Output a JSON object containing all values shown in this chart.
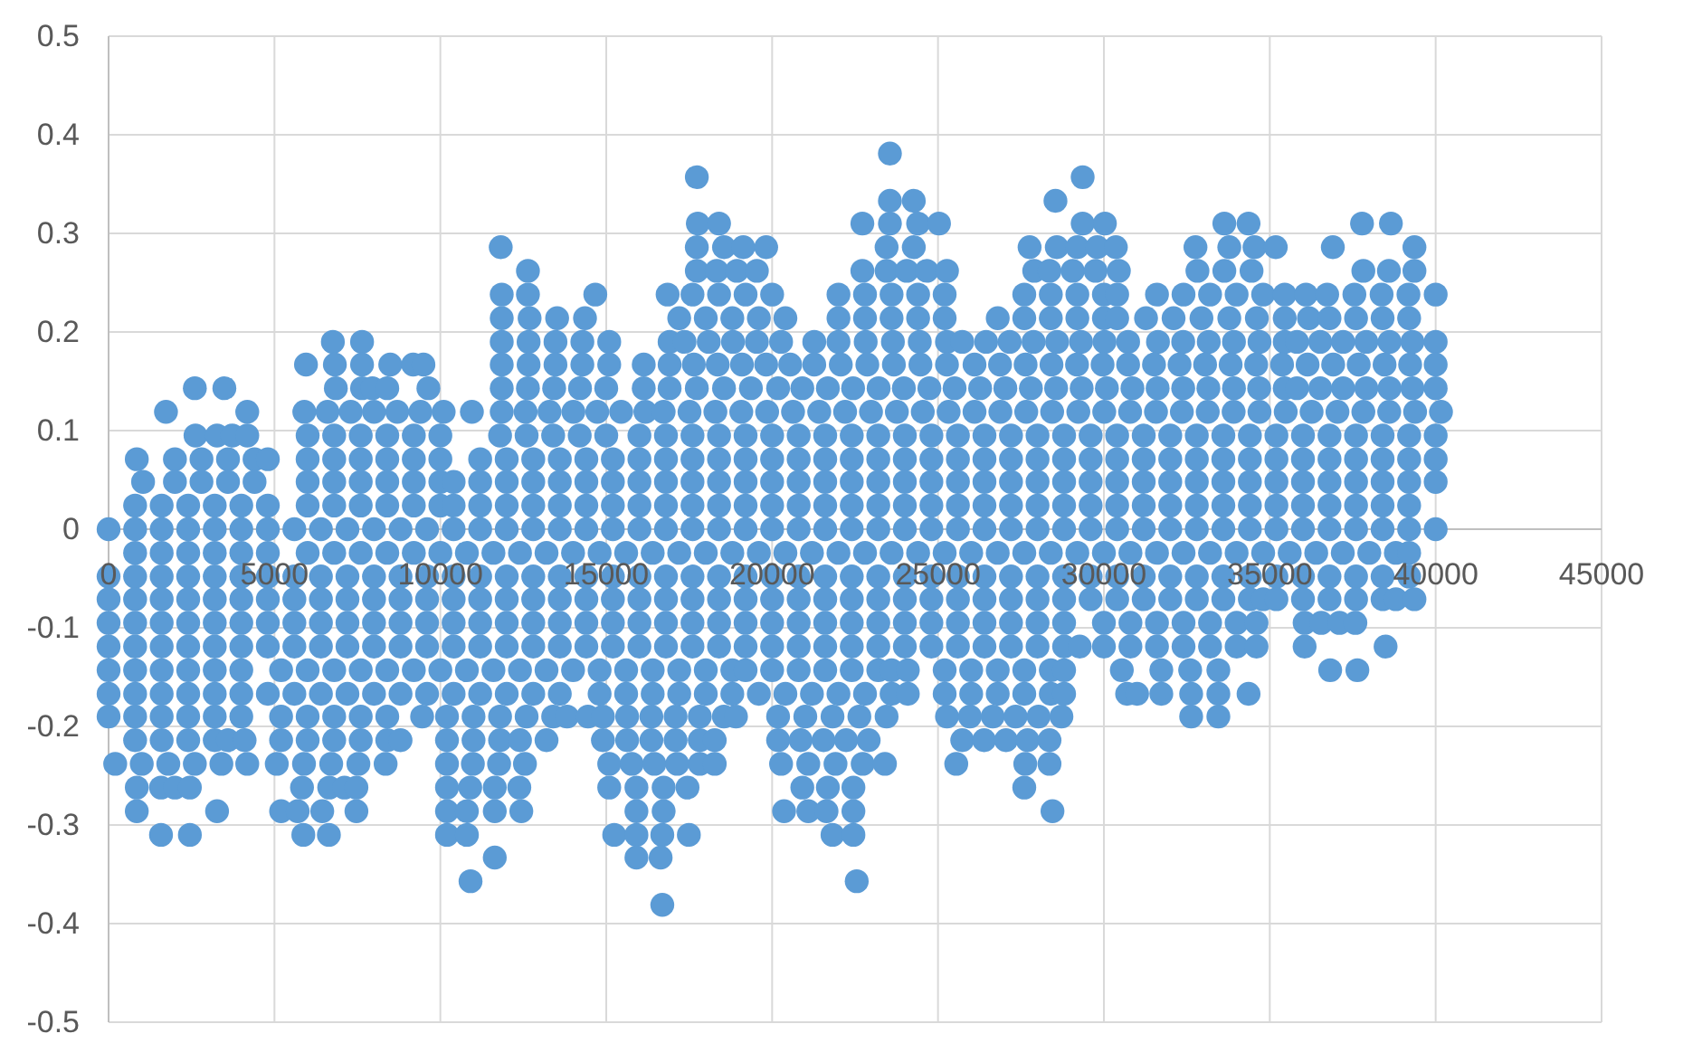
{
  "chart_data": {
    "type": "scatter",
    "xlim": [
      0,
      45000
    ],
    "ylim": [
      -0.5,
      0.5
    ],
    "xticks": [
      0,
      5000,
      10000,
      15000,
      20000,
      25000,
      30000,
      35000,
      40000,
      45000
    ],
    "yticks": [
      -0.5,
      -0.4,
      -0.3,
      -0.2,
      -0.1,
      0,
      0.1,
      0.2,
      0.3,
      0.4,
      0.5
    ],
    "grid": true,
    "marker": "circle",
    "color": "#5b9bd5",
    "series": [
      {
        "x": [
          23550
        ],
        "values": [
          0.381
        ]
      },
      {
        "x": [
          17730,
          29360
        ],
        "values": [
          0.357,
          0.357
        ]
      },
      {
        "x": [
          23550,
          24270,
          28540
        ],
        "values": [
          0.333,
          0.333,
          0.333
        ]
      },
      {
        "x": [
          17760,
          18400,
          22720,
          23550,
          24400,
          25030,
          29360,
          30030,
          33630,
          34360,
          37780,
          38650
        ],
        "values": [
          0.31,
          0.31,
          0.31,
          0.31,
          0.31,
          0.31,
          0.31,
          0.31,
          0.31,
          0.31,
          0.31,
          0.31
        ]
      },
      {
        "x": [
          11820,
          17730,
          18550,
          19130,
          19820,
          23450,
          24270,
          27760,
          28580,
          29200,
          29800,
          30360,
          32760,
          33780,
          34540,
          35180,
          36900,
          39360
        ],
        "values": [
          0.286,
          0.286,
          0.286,
          0.286,
          0.286,
          0.286,
          0.286,
          0.286,
          0.286,
          0.286,
          0.286,
          0.286,
          0.286,
          0.286,
          0.286,
          0.286,
          0.286,
          0.286
        ]
      },
      {
        "x": [
          12640,
          17730,
          18330,
          18940,
          19540,
          22720,
          23450,
          24060,
          24660,
          25270,
          27900,
          28360,
          29060,
          29750,
          30450,
          32820,
          33630,
          34450,
          37820,
          38590,
          39360
        ],
        "values": [
          0.262,
          0.262,
          0.262,
          0.262,
          0.262,
          0.262,
          0.262,
          0.262,
          0.262,
          0.262,
          0.262,
          0.262,
          0.262,
          0.262,
          0.262,
          0.262,
          0.262,
          0.262,
          0.262,
          0.262,
          0.262
        ]
      },
      {
        "x": [
          11850,
          12640,
          14670,
          16850,
          17600,
          18400,
          19200,
          20000,
          22000,
          22800,
          23600,
          24400,
          25200,
          27600,
          28400,
          29200,
          30000,
          30400,
          31600,
          32400,
          33200,
          34000,
          34800,
          35450,
          36090,
          36730,
          37550,
          38370,
          39180,
          40000
        ],
        "values": [
          0.238,
          0.238,
          0.238,
          0.238,
          0.238,
          0.238,
          0.238,
          0.238,
          0.238,
          0.238,
          0.238,
          0.238,
          0.238,
          0.238,
          0.238,
          0.238,
          0.238,
          0.238,
          0.238,
          0.238,
          0.238,
          0.238,
          0.238,
          0.238,
          0.238,
          0.238,
          0.238,
          0.238,
          0.238,
          0.238
        ]
      },
      {
        "x": [
          11850,
          12690,
          13520,
          14360,
          17200,
          18000,
          18800,
          19600,
          20400,
          22000,
          22800,
          23600,
          24400,
          25200,
          26800,
          27600,
          28400,
          29200,
          30000,
          30400,
          31270,
          32100,
          32940,
          33780,
          34610,
          35450,
          36180,
          36800,
          37600,
          38400,
          39200
        ],
        "values": [
          0.214,
          0.214,
          0.214,
          0.214,
          0.214,
          0.214,
          0.214,
          0.214,
          0.214,
          0.214,
          0.214,
          0.214,
          0.214,
          0.214,
          0.214,
          0.214,
          0.214,
          0.214,
          0.214,
          0.214,
          0.214,
          0.214,
          0.214,
          0.214,
          0.214,
          0.214,
          0.214,
          0.214,
          0.214,
          0.214,
          0.214
        ]
      },
      {
        "x": [
          6760,
          7640,
          11850,
          12660,
          13470,
          14280,
          15090,
          16910,
          17360,
          18090,
          18820,
          19540,
          20270,
          21270,
          22000,
          22820,
          23640,
          24450,
          25270,
          25730,
          26450,
          27160,
          27880,
          28590,
          29310,
          30020,
          30730,
          31630,
          32390,
          33160,
          33920,
          34690,
          35450,
          35820,
          36520,
          37210,
          37910,
          38610,
          39300,
          40000
        ],
        "values": [
          0.19,
          0.19,
          0.19,
          0.19,
          0.19,
          0.19,
          0.19,
          0.19,
          0.19,
          0.19,
          0.19,
          0.19,
          0.19,
          0.19,
          0.19,
          0.19,
          0.19,
          0.19,
          0.19,
          0.19,
          0.19,
          0.19,
          0.19,
          0.19,
          0.19,
          0.19,
          0.19,
          0.19,
          0.19,
          0.19,
          0.19,
          0.19,
          0.19,
          0.19,
          0.19,
          0.19,
          0.19,
          0.19,
          0.19,
          0.19
        ]
      },
      {
        "x": [
          5950,
          6820,
          7640,
          8490,
          9180,
          9490,
          11850,
          12660,
          13470,
          14280,
          15090,
          16130,
          16910,
          17640,
          18360,
          19090,
          19820,
          20545,
          21270,
          22070,
          22870,
          23670,
          24470,
          25270,
          26100,
          26870,
          27640,
          28420,
          29190,
          29960,
          30730,
          31510,
          32280,
          33050,
          33820,
          34590,
          35370,
          36140,
          36910,
          37680,
          38460,
          39230,
          40000
        ],
        "values": [
          0.167,
          0.167,
          0.167,
          0.167,
          0.167,
          0.167,
          0.167,
          0.167,
          0.167,
          0.167,
          0.167,
          0.167,
          0.167,
          0.167,
          0.167,
          0.167,
          0.167,
          0.167,
          0.167,
          0.167,
          0.167,
          0.167,
          0.167,
          0.167,
          0.167,
          0.167,
          0.167,
          0.167,
          0.167,
          0.167,
          0.167,
          0.167,
          0.167,
          0.167,
          0.167,
          0.167,
          0.167,
          0.167,
          0.167,
          0.167,
          0.167,
          0.167,
          0.167
        ]
      },
      {
        "x": [
          2600,
          3490,
          6850,
          7640,
          7950,
          8400,
          9640,
          11850,
          12640,
          13430,
          14210,
          15000,
          16130,
          16910,
          17730,
          18550,
          19360,
          20180,
          20910,
          21680,
          22440,
          23210,
          23970,
          24740,
          25500,
          26270,
          27030,
          27800,
          28560,
          29330,
          30090,
          30860,
          31620,
          32390,
          33150,
          33920,
          34680,
          35450,
          35820,
          36520,
          37210,
          37910,
          38610,
          39300,
          40000
        ],
        "values": [
          0.143,
          0.143,
          0.143,
          0.143,
          0.143,
          0.143,
          0.143,
          0.143,
          0.143,
          0.143,
          0.143,
          0.143,
          0.143,
          0.143,
          0.143,
          0.143,
          0.143,
          0.143,
          0.143,
          0.143,
          0.143,
          0.143,
          0.143,
          0.143,
          0.143,
          0.143,
          0.143,
          0.143,
          0.143,
          0.143,
          0.143,
          0.143,
          0.143,
          0.143,
          0.143,
          0.143,
          0.143,
          0.143,
          0.143,
          0.143,
          0.143,
          0.143,
          0.143,
          0.143,
          0.143
        ]
      },
      {
        "x": [
          1730,
          4180,
          5900,
          6600,
          7300,
          8000,
          8700,
          9400,
          10100,
          10950,
          11850,
          12570,
          13290,
          14010,
          14730,
          15450,
          16180,
          16730,
          17510,
          18290,
          19070,
          19850,
          20630,
          21420,
          22200,
          22980,
          23760,
          24540,
          25320,
          26100,
          26880,
          27660,
          28440,
          29230,
          30010,
          30790,
          31570,
          32350,
          33130,
          33910,
          34690,
          35480,
          36260,
          37040,
          37820,
          38600,
          39380,
          40160
        ],
        "values": [
          0.119,
          0.119,
          0.119,
          0.119,
          0.119,
          0.119,
          0.119,
          0.119,
          0.119,
          0.119,
          0.119,
          0.119,
          0.119,
          0.119,
          0.119,
          0.119,
          0.119,
          0.119,
          0.119,
          0.119,
          0.119,
          0.119,
          0.119,
          0.119,
          0.119,
          0.119,
          0.119,
          0.119,
          0.119,
          0.119,
          0.119,
          0.119,
          0.119,
          0.119,
          0.119,
          0.119,
          0.119,
          0.119,
          0.119,
          0.119,
          0.119,
          0.119,
          0.119,
          0.119,
          0.119,
          0.119,
          0.119,
          0.119
        ]
      },
      {
        "x": [
          2620,
          3270,
          3730,
          4180,
          6000,
          6800,
          7600,
          8400,
          9200,
          10000,
          11800,
          12600,
          13400,
          14200,
          15000,
          16000,
          16800,
          17600,
          18400,
          19200,
          20000,
          20800,
          21600,
          22400,
          23200,
          24000,
          24800,
          25600,
          26400,
          27200,
          28000,
          28800,
          29600,
          30400,
          31200,
          32000,
          32800,
          33600,
          34400,
          35200,
          36000,
          36800,
          37600,
          38400,
          39200,
          40000
        ],
        "values": [
          0.095,
          0.095,
          0.095,
          0.095,
          0.095,
          0.095,
          0.095,
          0.095,
          0.095,
          0.095,
          0.095,
          0.095,
          0.095,
          0.095,
          0.095,
          0.095,
          0.095,
          0.095,
          0.095,
          0.095,
          0.095,
          0.095,
          0.095,
          0.095,
          0.095,
          0.095,
          0.095,
          0.095,
          0.095,
          0.095,
          0.095,
          0.095,
          0.095,
          0.095,
          0.095,
          0.095,
          0.095,
          0.095,
          0.095,
          0.095,
          0.095,
          0.095,
          0.095,
          0.095,
          0.095,
          0.095
        ]
      },
      {
        "x": [
          850,
          2000,
          2800,
          3600,
          4400,
          4800,
          6000,
          6800,
          7600,
          8400,
          9200,
          10000,
          11200,
          12000,
          12800,
          13600,
          14400,
          15200,
          16000,
          16800,
          17600,
          18400,
          19200,
          20000,
          20800,
          21600,
          22400,
          23200,
          24000,
          24800,
          25600,
          26400,
          27200,
          28000,
          28800,
          29600,
          30400,
          31200,
          32000,
          32800,
          33600,
          34400,
          35200,
          36000,
          36800,
          37600,
          38400,
          39200,
          40000
        ],
        "values": [
          0.071,
          0.071,
          0.071,
          0.071,
          0.071,
          0.071,
          0.071,
          0.071,
          0.071,
          0.071,
          0.071,
          0.071,
          0.071,
          0.071,
          0.071,
          0.071,
          0.071,
          0.071,
          0.071,
          0.071,
          0.071,
          0.071,
          0.071,
          0.071,
          0.071,
          0.071,
          0.071,
          0.071,
          0.071,
          0.071,
          0.071,
          0.071,
          0.071,
          0.071,
          0.071,
          0.071,
          0.071,
          0.071,
          0.071,
          0.071,
          0.071,
          0.071,
          0.071,
          0.071,
          0.071,
          0.071,
          0.071,
          0.071,
          0.071
        ]
      },
      {
        "x": [
          1040,
          2000,
          2800,
          3600,
          4400,
          6000,
          6800,
          7600,
          8400,
          9200,
          10000,
          10400,
          11200,
          12000,
          12800,
          13600,
          14400,
          15200,
          16000,
          16800,
          17600,
          18400,
          19200,
          20000,
          20800,
          21600,
          22400,
          23200,
          24000,
          24800,
          25600,
          26400,
          27200,
          28000,
          28800,
          29600,
          30400,
          31200,
          32000,
          32800,
          33600,
          34400,
          35200,
          36000,
          36800,
          37600,
          38400,
          39200,
          40000
        ],
        "values": [
          0.048,
          0.048,
          0.048,
          0.048,
          0.048,
          0.048,
          0.048,
          0.048,
          0.048,
          0.048,
          0.048,
          0.048,
          0.048,
          0.048,
          0.048,
          0.048,
          0.048,
          0.048,
          0.048,
          0.048,
          0.048,
          0.048,
          0.048,
          0.048,
          0.048,
          0.048,
          0.048,
          0.048,
          0.048,
          0.048,
          0.048,
          0.048,
          0.048,
          0.048,
          0.048,
          0.048,
          0.048,
          0.048,
          0.048,
          0.048,
          0.048,
          0.048,
          0.048,
          0.048,
          0.048,
          0.048,
          0.048,
          0.048,
          0.048
        ]
      },
      {
        "x": [
          800,
          1600,
          2400,
          3200,
          4000,
          4800,
          6000,
          6800,
          7600,
          8400,
          9200,
          10000,
          10400,
          11200,
          12000,
          12800,
          13600,
          14400,
          15200,
          16000,
          16800,
          17600,
          18400,
          19200,
          20000,
          20800,
          21600,
          22400,
          23200,
          24000,
          24800,
          25600,
          26400,
          27200,
          28000,
          28800,
          29600,
          30400,
          31200,
          32000,
          32800,
          33600,
          34400,
          35200,
          36000,
          36800,
          37600,
          38400,
          39200
        ],
        "values": [
          0.024,
          0.024,
          0.024,
          0.024,
          0.024,
          0.024,
          0.024,
          0.024,
          0.024,
          0.024,
          0.024,
          0.024,
          0.024,
          0.024,
          0.024,
          0.024,
          0.024,
          0.024,
          0.024,
          0.024,
          0.024,
          0.024,
          0.024,
          0.024,
          0.024,
          0.024,
          0.024,
          0.024,
          0.024,
          0.024,
          0.024,
          0.024,
          0.024,
          0.024,
          0.024,
          0.024,
          0.024,
          0.024,
          0.024,
          0.024,
          0.024,
          0.024,
          0.024,
          0.024,
          0.024,
          0.024,
          0.024,
          0.024,
          0.024
        ]
      },
      {
        "x": [
          0,
          800,
          1600,
          2400,
          3200,
          4000,
          4800,
          5600,
          6400,
          7200,
          8000,
          8800,
          9600,
          10400,
          11200,
          12000,
          12800,
          13600,
          14400,
          15200,
          16000,
          16800,
          17600,
          18400,
          19200,
          20000,
          20800,
          21600,
          22400,
          23200,
          24000,
          24800,
          25600,
          26400,
          27200,
          28000,
          28800,
          29600,
          30400,
          31200,
          32000,
          32800,
          33600,
          34400,
          35200,
          36000,
          36800,
          37600,
          38400,
          39200,
          40000
        ],
        "values": [
          0,
          0,
          0,
          0,
          0,
          0,
          0,
          0,
          0,
          0,
          0,
          0,
          0,
          0,
          0,
          0,
          0,
          0,
          0,
          0,
          0,
          0,
          0,
          0,
          0,
          0,
          0,
          0,
          0,
          0,
          0,
          0,
          0,
          0,
          0,
          0,
          0,
          0,
          0,
          0,
          0,
          0,
          0,
          0,
          0,
          0,
          0,
          0,
          0,
          0,
          0
        ]
      },
      {
        "x": [
          800,
          1600,
          2400,
          3200,
          4000,
          4800,
          6000,
          6800,
          7600,
          8400,
          9200,
          10000,
          10800,
          11600,
          12400,
          13200,
          14000,
          14800,
          15600,
          16400,
          17200,
          18000,
          18800,
          19600,
          20400,
          21200,
          22000,
          22800,
          23600,
          24400,
          25200,
          26000,
          26800,
          27600,
          28400,
          29200,
          30000,
          30800,
          31600,
          32400,
          33200,
          34000,
          34800,
          35600,
          36400,
          37200,
          38000,
          38800,
          39200
        ],
        "values": [
          -0.024,
          -0.024,
          -0.024,
          -0.024,
          -0.024,
          -0.024,
          -0.024,
          -0.024,
          -0.024,
          -0.024,
          -0.024,
          -0.024,
          -0.024,
          -0.024,
          -0.024,
          -0.024,
          -0.024,
          -0.024,
          -0.024,
          -0.024,
          -0.024,
          -0.024,
          -0.024,
          -0.024,
          -0.024,
          -0.024,
          -0.024,
          -0.024,
          -0.024,
          -0.024,
          -0.024,
          -0.024,
          -0.024,
          -0.024,
          -0.024,
          -0.024,
          -0.024,
          -0.024,
          -0.024,
          -0.024,
          -0.024,
          -0.024,
          -0.024,
          -0.024,
          -0.024,
          -0.024,
          -0.024,
          -0.024,
          -0.024
        ]
      },
      {
        "x": [
          0,
          800,
          1600,
          2400,
          3200,
          4000,
          4800,
          5600,
          6400,
          7200,
          8000,
          8800,
          9600,
          10400,
          11200,
          12000,
          12800,
          13600,
          14400,
          15200,
          16000,
          16800,
          17600,
          18400,
          19200,
          20000,
          20800,
          21600,
          22400,
          23200,
          24000,
          24800,
          25600,
          26400,
          27200,
          28000,
          28800,
          29600,
          30400,
          31200,
          32000,
          32800,
          33600,
          34400,
          35200,
          36000,
          36800,
          37600,
          38400,
          39200
        ],
        "values": [
          -0.048,
          -0.048,
          -0.048,
          -0.048,
          -0.048,
          -0.048,
          -0.048,
          -0.048,
          -0.048,
          -0.048,
          -0.048,
          -0.048,
          -0.048,
          -0.048,
          -0.048,
          -0.048,
          -0.048,
          -0.048,
          -0.048,
          -0.048,
          -0.048,
          -0.048,
          -0.048,
          -0.048,
          -0.048,
          -0.048,
          -0.048,
          -0.048,
          -0.048,
          -0.048,
          -0.048,
          -0.048,
          -0.048,
          -0.048,
          -0.048,
          -0.048,
          -0.048,
          -0.048,
          -0.048,
          -0.048,
          -0.048,
          -0.048,
          -0.048,
          -0.048,
          -0.048,
          -0.048,
          -0.048,
          -0.048,
          -0.048,
          -0.048
        ]
      },
      {
        "x": [
          0,
          800,
          1600,
          2400,
          3200,
          4000,
          4800,
          5600,
          6400,
          7200,
          8000,
          8800,
          9600,
          10400,
          11200,
          12000,
          12800,
          13600,
          14400,
          15200,
          16000,
          16800,
          17600,
          18400,
          19200,
          20000,
          20800,
          21600,
          22400,
          23200,
          24000,
          24800,
          25600,
          26400,
          27200,
          28000,
          28800,
          29600,
          30400,
          31200,
          32000,
          32800,
          33600,
          34400,
          34800,
          35200,
          36000,
          36800,
          37600,
          38400,
          38800,
          39360
        ],
        "values": [
          -0.071,
          -0.071,
          -0.071,
          -0.071,
          -0.071,
          -0.071,
          -0.071,
          -0.071,
          -0.071,
          -0.071,
          -0.071,
          -0.071,
          -0.071,
          -0.071,
          -0.071,
          -0.071,
          -0.071,
          -0.071,
          -0.071,
          -0.071,
          -0.071,
          -0.071,
          -0.071,
          -0.071,
          -0.071,
          -0.071,
          -0.071,
          -0.071,
          -0.071,
          -0.071,
          -0.071,
          -0.071,
          -0.071,
          -0.071,
          -0.071,
          -0.071,
          -0.071,
          -0.071,
          -0.071,
          -0.071,
          -0.071,
          -0.071,
          -0.071,
          -0.071,
          -0.071,
          -0.071,
          -0.071,
          -0.071,
          -0.071,
          -0.071,
          -0.071,
          -0.071
        ]
      },
      {
        "x": [
          0,
          800,
          1600,
          2400,
          3200,
          4000,
          4800,
          5600,
          6400,
          7200,
          8000,
          8800,
          9600,
          10400,
          11200,
          12000,
          12800,
          13600,
          14400,
          15200,
          16000,
          16800,
          17600,
          18400,
          19200,
          20000,
          20800,
          21600,
          22400,
          23200,
          24000,
          24800,
          25600,
          26400,
          27200,
          28000,
          28800,
          30000,
          30800,
          31600,
          32400,
          33200,
          34000,
          34600,
          36050,
          36550,
          37100,
          37580
        ],
        "values": [
          -0.095,
          -0.095,
          -0.095,
          -0.095,
          -0.095,
          -0.095,
          -0.095,
          -0.095,
          -0.095,
          -0.095,
          -0.095,
          -0.095,
          -0.095,
          -0.095,
          -0.095,
          -0.095,
          -0.095,
          -0.095,
          -0.095,
          -0.095,
          -0.095,
          -0.095,
          -0.095,
          -0.095,
          -0.095,
          -0.095,
          -0.095,
          -0.095,
          -0.095,
          -0.095,
          -0.095,
          -0.095,
          -0.095,
          -0.095,
          -0.095,
          -0.095,
          -0.095,
          -0.095,
          -0.095,
          -0.095,
          -0.095,
          -0.095,
          -0.095,
          -0.095,
          -0.095,
          -0.095,
          -0.095,
          -0.095
        ]
      },
      {
        "x": [
          0,
          800,
          1600,
          2400,
          3200,
          4000,
          4800,
          5600,
          6400,
          7200,
          8000,
          8800,
          9600,
          10400,
          11200,
          12000,
          12800,
          13600,
          14400,
          15200,
          16000,
          16800,
          17600,
          18400,
          19200,
          20000,
          20800,
          21600,
          22400,
          23200,
          24000,
          24800,
          25600,
          26400,
          27200,
          28000,
          28800,
          29270,
          30000,
          30800,
          31600,
          32400,
          33200,
          34000,
          34600,
          36050,
          38490
        ],
        "values": [
          -0.119,
          -0.119,
          -0.119,
          -0.119,
          -0.119,
          -0.119,
          -0.119,
          -0.119,
          -0.119,
          -0.119,
          -0.119,
          -0.119,
          -0.119,
          -0.119,
          -0.119,
          -0.119,
          -0.119,
          -0.119,
          -0.119,
          -0.119,
          -0.119,
          -0.119,
          -0.119,
          -0.119,
          -0.119,
          -0.119,
          -0.119,
          -0.119,
          -0.119,
          -0.119,
          -0.119,
          -0.119,
          -0.119,
          -0.119,
          -0.119,
          -0.119,
          -0.119,
          -0.119,
          -0.119,
          -0.119,
          -0.119,
          -0.119,
          -0.119,
          -0.119,
          -0.119,
          -0.119,
          -0.119
        ]
      },
      {
        "x": [
          0,
          800,
          1600,
          2400,
          3200,
          4000,
          5200,
          6000,
          6800,
          7600,
          8400,
          9200,
          10000,
          10800,
          11600,
          12400,
          13200,
          14000,
          14800,
          15600,
          16400,
          17200,
          18000,
          18800,
          19200,
          20000,
          20800,
          21600,
          22400,
          23200,
          23600,
          24090,
          25200,
          26000,
          26800,
          27600,
          28400,
          28800,
          30540,
          31730,
          32600,
          33450,
          36820,
          37640
        ],
        "values": [
          -0.143,
          -0.143,
          -0.143,
          -0.143,
          -0.143,
          -0.143,
          -0.143,
          -0.143,
          -0.143,
          -0.143,
          -0.143,
          -0.143,
          -0.143,
          -0.143,
          -0.143,
          -0.143,
          -0.143,
          -0.143,
          -0.143,
          -0.143,
          -0.143,
          -0.143,
          -0.143,
          -0.143,
          -0.143,
          -0.143,
          -0.143,
          -0.143,
          -0.143,
          -0.143,
          -0.143,
          -0.143,
          -0.143,
          -0.143,
          -0.143,
          -0.143,
          -0.143,
          -0.143,
          -0.143,
          -0.143,
          -0.143,
          -0.143,
          -0.143,
          -0.143
        ]
      },
      {
        "x": [
          0,
          800,
          1600,
          2400,
          3200,
          4000,
          4800,
          5600,
          6400,
          7200,
          8000,
          8800,
          9600,
          10400,
          11200,
          12000,
          12800,
          13600,
          14800,
          15600,
          16400,
          17200,
          18000,
          18800,
          19600,
          20400,
          21200,
          22000,
          22800,
          23600,
          24090,
          25200,
          26000,
          26800,
          27600,
          28400,
          28800,
          30700,
          31000,
          31730,
          32630,
          33450,
          34360
        ],
        "values": [
          -0.167,
          -0.167,
          -0.167,
          -0.167,
          -0.167,
          -0.167,
          -0.167,
          -0.167,
          -0.167,
          -0.167,
          -0.167,
          -0.167,
          -0.167,
          -0.167,
          -0.167,
          -0.167,
          -0.167,
          -0.167,
          -0.167,
          -0.167,
          -0.167,
          -0.167,
          -0.167,
          -0.167,
          -0.167,
          -0.167,
          -0.167,
          -0.167,
          -0.167,
          -0.167,
          -0.167,
          -0.167,
          -0.167,
          -0.167,
          -0.167,
          -0.167,
          -0.167,
          -0.167,
          -0.167,
          -0.167,
          -0.167,
          -0.167,
          -0.167
        ]
      },
      {
        "x": [
          0,
          800,
          1600,
          2400,
          3200,
          4000,
          5200,
          6000,
          6800,
          7600,
          8400,
          9450,
          10200,
          11000,
          11800,
          12600,
          13400,
          13820,
          14450,
          14900,
          15630,
          16360,
          17090,
          17820,
          18545,
          18910,
          20180,
          21000,
          21820,
          22630,
          23450,
          25270,
          25960,
          26650,
          27340,
          28030,
          28720,
          32630,
          33450
        ],
        "values": [
          -0.19,
          -0.19,
          -0.19,
          -0.19,
          -0.19,
          -0.19,
          -0.19,
          -0.19,
          -0.19,
          -0.19,
          -0.19,
          -0.19,
          -0.19,
          -0.19,
          -0.19,
          -0.19,
          -0.19,
          -0.19,
          -0.19,
          -0.19,
          -0.19,
          -0.19,
          -0.19,
          -0.19,
          -0.19,
          -0.19,
          -0.19,
          -0.19,
          -0.19,
          -0.19,
          -0.19,
          -0.19,
          -0.19,
          -0.19,
          -0.19,
          -0.19,
          -0.19,
          -0.19,
          -0.19
        ]
      },
      {
        "x": [
          800,
          1600,
          2400,
          3200,
          3600,
          4100,
          5200,
          6000,
          6800,
          7600,
          8400,
          8800,
          10200,
          11000,
          11800,
          12400,
          13200,
          14900,
          15630,
          16360,
          17090,
          17820,
          18270,
          20180,
          20860,
          21550,
          22230,
          22910,
          25730,
          26390,
          27050,
          27700,
          28360
        ],
        "values": [
          -0.214,
          -0.214,
          -0.214,
          -0.214,
          -0.214,
          -0.214,
          -0.214,
          -0.214,
          -0.214,
          -0.214,
          -0.214,
          -0.214,
          -0.214,
          -0.214,
          -0.214,
          -0.214,
          -0.214,
          -0.214,
          -0.214,
          -0.214,
          -0.214,
          -0.214,
          -0.214,
          -0.214,
          -0.214,
          -0.214,
          -0.214,
          -0.214,
          -0.214,
          -0.214,
          -0.214,
          -0.214,
          -0.214
        ]
      },
      {
        "x": [
          200,
          1000,
          1800,
          2600,
          3400,
          4180,
          5070,
          5890,
          6710,
          7530,
          8350,
          10200,
          10980,
          11770,
          12550,
          15090,
          15770,
          16450,
          17140,
          17820,
          18270,
          20270,
          21090,
          21910,
          22730,
          23400,
          25550,
          27630,
          28360
        ],
        "values": [
          -0.238,
          -0.238,
          -0.238,
          -0.238,
          -0.238,
          -0.238,
          -0.238,
          -0.238,
          -0.238,
          -0.238,
          -0.238,
          -0.238,
          -0.238,
          -0.238,
          -0.238,
          -0.238,
          -0.238,
          -0.238,
          -0.238,
          -0.238,
          -0.238,
          -0.238,
          -0.238,
          -0.238,
          -0.238,
          -0.238,
          -0.238,
          -0.238,
          -0.238
        ]
      },
      {
        "x": [
          850,
          1580,
          2000,
          2450,
          5830,
          6650,
          7110,
          7470,
          10200,
          10900,
          11640,
          12380,
          15090,
          15910,
          16730,
          17450,
          20910,
          21680,
          22450,
          27600
        ],
        "values": [
          -0.262,
          -0.262,
          -0.262,
          -0.262,
          -0.262,
          -0.262,
          -0.262,
          -0.262,
          -0.262,
          -0.262,
          -0.262,
          -0.262,
          -0.262,
          -0.262,
          -0.262,
          -0.262,
          -0.262,
          -0.262,
          -0.262,
          -0.262
        ]
      },
      {
        "x": [
          850,
          3270,
          5200,
          5700,
          6440,
          7470,
          10200,
          10800,
          11640,
          12440,
          15910,
          16730,
          20360,
          21090,
          21640,
          22450,
          28450
        ],
        "values": [
          -0.286,
          -0.286,
          -0.286,
          -0.286,
          -0.286,
          -0.286,
          -0.286,
          -0.286,
          -0.286,
          -0.286,
          -0.286,
          -0.286,
          -0.286,
          -0.286,
          -0.286,
          -0.286,
          -0.286
        ]
      },
      {
        "x": [
          1580,
          2450,
          5870,
          6640,
          10200,
          10800,
          15240,
          15910,
          16690,
          17490,
          21820,
          22450
        ],
        "values": [
          -0.31,
          -0.31,
          -0.31,
          -0.31,
          -0.31,
          -0.31,
          -0.31,
          -0.31,
          -0.31,
          -0.31,
          -0.31,
          -0.31
        ]
      },
      {
        "x": [
          11640,
          15910,
          16640
        ],
        "values": [
          -0.333,
          -0.333,
          -0.333
        ]
      },
      {
        "x": [
          10910,
          22550
        ],
        "values": [
          -0.357,
          -0.357
        ]
      },
      {
        "x": [
          16690
        ],
        "values": [
          -0.381
        ]
      }
    ]
  }
}
